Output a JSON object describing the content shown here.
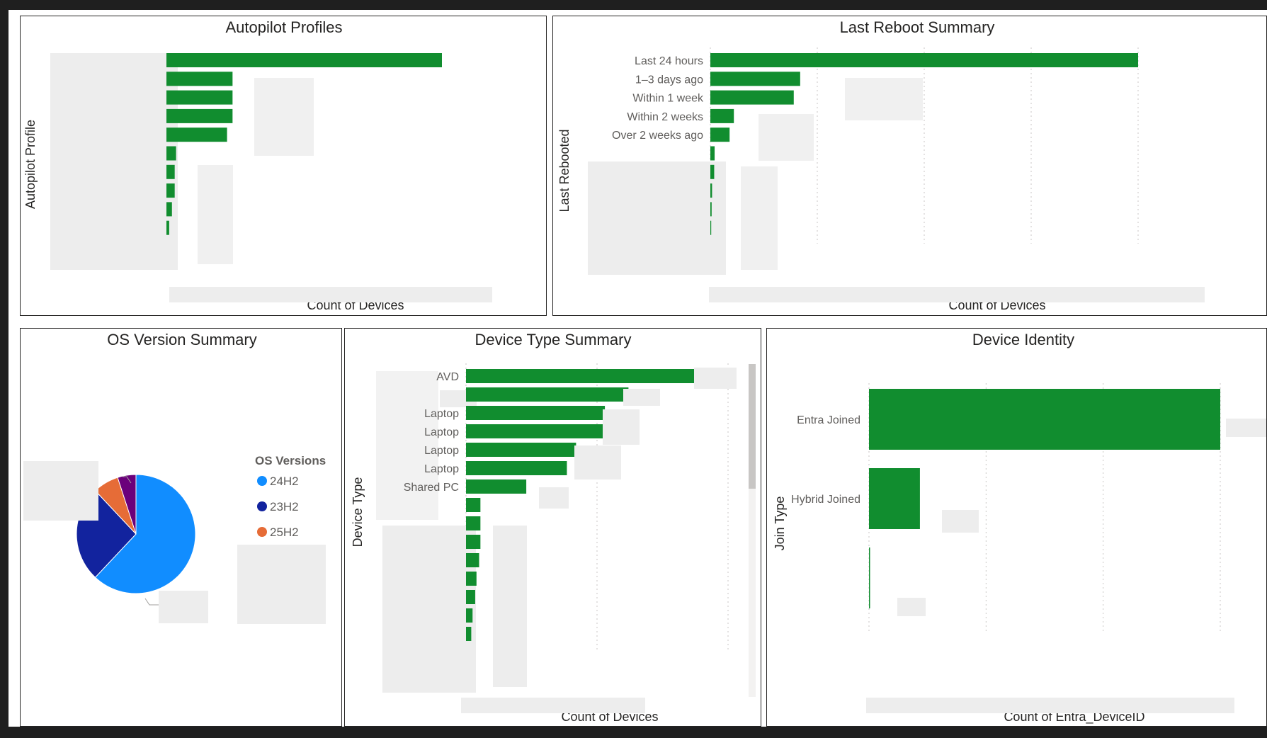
{
  "colors": {
    "bar": "#118d2f",
    "pie": [
      "#118dff",
      "#12239e",
      "#e66c37",
      "#6b007b"
    ]
  },
  "chart_data": [
    {
      "id": "autopilot",
      "type": "bar",
      "orientation": "horizontal",
      "title": "Autopilot Profiles",
      "xlabel": "Count of Devices",
      "ylabel": "Autopilot Profile",
      "categories": [
        "",
        "",
        "",
        "",
        "",
        "",
        "",
        "",
        "",
        ""
      ],
      "values": [
        100,
        24,
        24,
        24,
        22,
        3.5,
        3,
        3,
        2,
        1
      ],
      "xlim": [
        0,
        105
      ],
      "grid": false
    },
    {
      "id": "reboot",
      "type": "bar",
      "orientation": "horizontal",
      "title": "Last Reboot Summary",
      "xlabel": "Count of Devices",
      "ylabel": "Last Rebooted",
      "categories": [
        "Last 24 hours",
        "1–3 days ago",
        "Within 1 week",
        "Within 2 weeks",
        "Over 2 weeks ago",
        "",
        "",
        "",
        "",
        ""
      ],
      "values": [
        100,
        21,
        19.5,
        5.5,
        4.5,
        1,
        0.9,
        0.4,
        0.3,
        0.2
      ],
      "xlim": [
        0,
        108
      ],
      "grid": true
    },
    {
      "id": "os",
      "type": "pie",
      "title": "OS Version Summary",
      "legend_title": "OS Versions",
      "legend_position": "right",
      "labels": [
        "24H2",
        "23H2",
        "25H2",
        ""
      ],
      "values": [
        62,
        26,
        7,
        5
      ]
    },
    {
      "id": "devicetype",
      "type": "bar",
      "orientation": "horizontal",
      "title": "Device Type Summary",
      "xlabel": "Count of Devices",
      "ylabel": "Device Type",
      "categories": [
        "AVD",
        "",
        "Laptop",
        "Laptop",
        "Laptop",
        "Laptop",
        "Shared PC",
        "",
        "",
        "",
        "",
        "",
        "",
        "",
        ""
      ],
      "values": [
        100,
        62,
        53,
        52.5,
        42,
        38.5,
        23,
        5.5,
        5.5,
        5.5,
        5,
        4,
        3.5,
        2.5,
        2
      ],
      "xlim": [
        0,
        125
      ],
      "grid": true
    },
    {
      "id": "identity",
      "type": "bar",
      "orientation": "horizontal",
      "title": "Device Identity",
      "xlabel": "Count of Entra_DeviceID",
      "ylabel": "Join Type",
      "categories": [
        "Entra Joined",
        "Hybrid Joined",
        ""
      ],
      "values": [
        100,
        14.5,
        0.3
      ],
      "xlim": [
        0,
        125
      ],
      "grid": true
    }
  ]
}
